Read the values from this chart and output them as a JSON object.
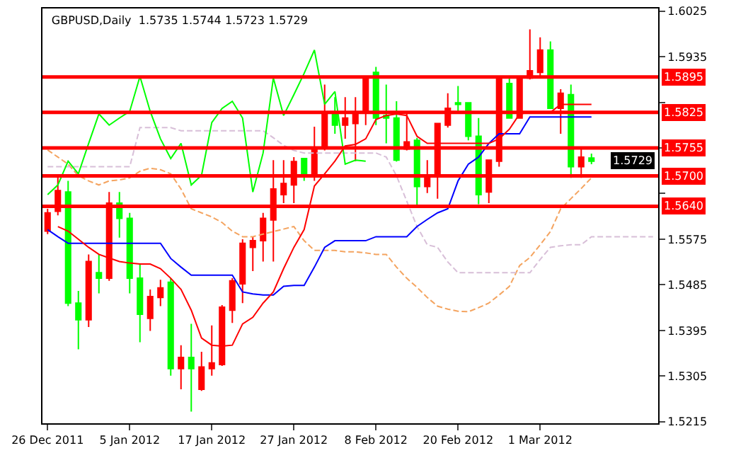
{
  "chart_data": {
    "type": "candlestick",
    "title": "GBPUSD,Daily  1.5735 1.5744 1.5723 1.5729",
    "categories": [
      "26 Dec 2011",
      null,
      null,
      null,
      null,
      null,
      null,
      null,
      "5 Jan 2012",
      null,
      null,
      null,
      null,
      null,
      null,
      null,
      "17 Jan 2012",
      null,
      null,
      null,
      null,
      null,
      null,
      null,
      "27 Jan 2012",
      null,
      null,
      null,
      null,
      null,
      null,
      null,
      "8 Feb 2012",
      null,
      null,
      null,
      null,
      null,
      null,
      null,
      "20 Feb 2012",
      null,
      null,
      null,
      null,
      null,
      null,
      null,
      "1 Mar 2012",
      null,
      null,
      null,
      null,
      null,
      null,
      null,
      null,
      null,
      null,
      null
    ],
    "ohlc": [
      [
        1.5591,
        1.5635,
        1.5585,
        1.5627
      ],
      [
        1.563,
        1.5701,
        1.5622,
        1.5671
      ],
      [
        1.5668,
        1.569,
        1.5443,
        1.5449
      ],
      [
        1.5449,
        1.5473,
        1.5358,
        1.5416
      ],
      [
        1.5416,
        1.5545,
        1.5402,
        1.5531
      ],
      [
        1.5509,
        1.5545,
        1.5468,
        1.5498
      ],
      [
        1.5498,
        1.5668,
        1.5493,
        1.5646
      ],
      [
        1.5646,
        1.5668,
        1.5578,
        1.5616
      ],
      [
        1.5616,
        1.5627,
        1.5468,
        1.5498
      ],
      [
        1.5498,
        1.5526,
        1.5372,
        1.5427
      ],
      [
        1.5419,
        1.5476,
        1.5394,
        1.5462
      ],
      [
        1.546,
        1.5495,
        1.5443,
        1.5479
      ],
      [
        1.549,
        1.5498,
        1.5306,
        1.532
      ],
      [
        1.532,
        1.5366,
        1.5279,
        1.5342
      ],
      [
        1.5342,
        1.5408,
        1.5235,
        1.532
      ],
      [
        1.5279,
        1.5353,
        1.5276,
        1.5323
      ],
      [
        1.532,
        1.5405,
        1.5306,
        1.5331
      ],
      [
        1.5328,
        1.5445,
        1.5325,
        1.5441
      ],
      [
        1.5435,
        1.5498,
        1.541,
        1.5493
      ],
      [
        1.5487,
        1.5575,
        1.5449,
        1.5567
      ],
      [
        1.5559,
        1.558,
        1.5512,
        1.5572
      ],
      [
        1.5572,
        1.5627,
        1.5531,
        1.5616
      ],
      [
        1.5613,
        1.5731,
        1.5531,
        1.5674
      ],
      [
        1.5663,
        1.5731,
        1.5646,
        1.5685
      ],
      [
        1.5682,
        1.5737,
        1.5646,
        1.5728
      ],
      [
        1.5734,
        1.5734,
        1.569,
        1.5698
      ],
      [
        1.5698,
        1.5797,
        1.569,
        1.5756
      ],
      [
        1.5756,
        1.588,
        1.575,
        1.5825
      ],
      [
        1.5825,
        1.5855,
        1.5783,
        1.58
      ],
      [
        1.58,
        1.5855,
        1.5773,
        1.5814
      ],
      [
        1.5803,
        1.5855,
        1.5729,
        1.5825
      ],
      [
        1.5825,
        1.5896,
        1.58,
        1.5896
      ],
      [
        1.5904,
        1.5915,
        1.58,
        1.5814
      ],
      [
        1.5819,
        1.588,
        1.5764,
        1.5814
      ],
      [
        1.5814,
        1.5847,
        1.5728,
        1.5731
      ],
      [
        1.5753,
        1.5822,
        1.575,
        1.5767
      ],
      [
        1.577,
        1.5775,
        1.5641,
        1.5679
      ],
      [
        1.5679,
        1.5731,
        1.5666,
        1.5696
      ],
      [
        1.5698,
        1.5803,
        1.5655,
        1.5803
      ],
      [
        1.58,
        1.5863,
        1.5795,
        1.5833
      ],
      [
        1.5844,
        1.5877,
        1.5825,
        1.5841
      ],
      [
        1.5844,
        1.5844,
        1.577,
        1.5778
      ],
      [
        1.5778,
        1.5814,
        1.5644,
        1.5663
      ],
      [
        1.5668,
        1.5731,
        1.5646,
        1.5731
      ],
      [
        1.5729,
        1.5891,
        1.5718,
        1.5891
      ],
      [
        1.5882,
        1.5896,
        1.5814,
        1.5814
      ],
      [
        1.5814,
        1.5893,
        1.5814,
        1.5893
      ],
      [
        1.5893,
        1.5989,
        1.589,
        1.5907
      ],
      [
        1.5904,
        1.5973,
        1.5893,
        1.5948
      ],
      [
        1.5948,
        1.5965,
        1.5833,
        1.5833
      ],
      [
        1.5833,
        1.5871,
        1.5783,
        1.5863
      ],
      [
        1.586,
        1.588,
        1.5696,
        1.5718
      ],
      [
        1.5718,
        1.5753,
        1.5696,
        1.5737
      ],
      [
        1.5735,
        1.5744,
        1.5723,
        1.5729
      ],
      null,
      null,
      null,
      null,
      null,
      null
    ],
    "colors": [
      "#ff0000",
      "#ff0000",
      "#00ff00",
      "#00ff00",
      "#ff0000",
      "#00ff00",
      "#ff0000",
      "#00ff00",
      "#00ff00",
      "#00ff00",
      "#ff0000",
      "#ff0000",
      "#00ff00",
      "#ff0000",
      "#00ff00",
      "#ff0000",
      "#ff0000",
      "#ff0000",
      "#ff0000",
      "#ff0000",
      "#ff0000",
      "#ff0000",
      "#ff0000",
      "#ff0000",
      "#ff0000",
      "#00ff00",
      "#ff0000",
      "#ff0000",
      "#00ff00",
      "#ff0000",
      "#ff0000",
      "#ff0000",
      "#00ff00",
      "#00ff00",
      "#00ff00",
      "#ff0000",
      "#00ff00",
      "#ff0000",
      "#ff0000",
      "#ff0000",
      "#00ff00",
      "#00ff00",
      "#00ff00",
      "#ff0000",
      "#ff0000",
      "#00ff00",
      "#ff0000",
      "#ff0000",
      "#ff0000",
      "#00ff00",
      "#ff0000",
      "#00ff00",
      "#ff0000",
      "#00ff00",
      null,
      null,
      null,
      null,
      null,
      null
    ],
    "series": [
      {
        "type": "line",
        "color": "#f4a460",
        "line_style": "dashed",
        "values": [
          1.5751,
          1.5737,
          1.5723,
          1.57,
          1.569,
          1.5682,
          1.569,
          1.5692,
          1.5696,
          1.5709,
          1.5715,
          1.5712,
          1.5704,
          1.5674,
          1.5635,
          1.5627,
          1.5619,
          1.5608,
          1.5591,
          1.558,
          1.558,
          1.5585,
          1.559,
          1.5595,
          1.56,
          1.5572,
          1.5553,
          1.5553,
          1.5553,
          1.555,
          1.555,
          1.5548,
          1.5545,
          1.5545,
          1.552,
          1.5498,
          1.548,
          1.546,
          1.5443,
          1.5437,
          1.5433,
          1.5432,
          1.544,
          1.5449,
          1.5465,
          1.5482,
          1.5523,
          1.5539,
          1.5564,
          1.559,
          1.5635,
          1.5655,
          1.5675,
          1.5696,
          null,
          null,
          null,
          null,
          null,
          null
        ]
      },
      {
        "type": "line",
        "color": "#d8bfd8",
        "line_style": "dashed",
        "values": [
          1.5718,
          1.5718,
          1.5718,
          1.5718,
          1.5718,
          1.5718,
          1.5718,
          1.5718,
          1.5718,
          1.5795,
          1.5795,
          1.5795,
          1.5795,
          1.5789,
          1.5789,
          1.5789,
          1.5789,
          1.5789,
          1.5789,
          1.5789,
          1.5789,
          1.5789,
          1.5775,
          1.576,
          1.575,
          1.5745,
          1.5745,
          1.5745,
          1.5745,
          1.5745,
          1.5745,
          1.5745,
          1.5745,
          1.5737,
          1.57,
          1.565,
          1.56,
          1.5564,
          1.5559,
          1.553,
          1.5509,
          1.5509,
          1.5509,
          1.5509,
          1.5509,
          1.5509,
          1.5509,
          1.5509,
          1.5535,
          1.5559,
          1.5562,
          1.5564,
          1.5564,
          1.558,
          1.558,
          1.558,
          1.558,
          1.558,
          1.558,
          1.558
        ]
      },
      {
        "type": "line",
        "color": "#00ff00",
        "line_style": "solid",
        "values": [
          1.5663,
          1.5682,
          1.5729,
          1.5704,
          1.5764,
          1.5822,
          1.58,
          1.5814,
          1.5827,
          1.5896,
          1.5827,
          1.5773,
          1.5734,
          1.5764,
          1.5682,
          1.5701,
          1.5805,
          1.5833,
          1.5847,
          1.5814,
          1.5668,
          1.5745,
          1.5893,
          1.5819,
          1.586,
          1.5902,
          1.5948,
          1.5841,
          1.5866,
          1.5723,
          1.5731,
          1.5729,
          null,
          null,
          null,
          null,
          null,
          null,
          null,
          null,
          null,
          null,
          null,
          null,
          null,
          null,
          null,
          null,
          null,
          null,
          null,
          null,
          null,
          null,
          null,
          null,
          null,
          null,
          null,
          null
        ]
      },
      {
        "type": "line",
        "color": "#0000ff",
        "line_style": "solid",
        "values": [
          1.5594,
          1.558,
          1.5567,
          1.5567,
          1.5567,
          1.5567,
          1.5567,
          1.5567,
          1.5567,
          1.5567,
          1.5567,
          1.5567,
          1.5537,
          1.552,
          1.5504,
          1.5504,
          1.5504,
          1.5504,
          1.5504,
          1.5471,
          1.5467,
          1.5465,
          1.5465,
          1.5482,
          1.5484,
          1.5484,
          1.552,
          1.5559,
          1.5572,
          1.5572,
          1.5572,
          1.5572,
          1.558,
          1.558,
          1.558,
          1.558,
          1.56,
          1.5614,
          1.5627,
          1.5635,
          1.569,
          1.5723,
          1.5737,
          1.5764,
          1.5783,
          1.5783,
          1.5783,
          1.5816,
          1.5816,
          1.5816,
          1.5816,
          1.5816,
          1.5816,
          1.5816,
          null,
          null,
          null,
          null,
          null,
          null
        ]
      },
      {
        "type": "line",
        "color": "#ff0000",
        "line_style": "solid",
        "values": [
          null,
          1.56,
          1.5591,
          1.5575,
          1.5559,
          1.5545,
          1.5538,
          1.5531,
          1.5528,
          1.5526,
          1.5526,
          1.5517,
          1.5498,
          1.5476,
          1.5435,
          1.538,
          1.5366,
          1.5364,
          1.5366,
          1.5408,
          1.5421,
          1.5449,
          1.5471,
          1.5517,
          1.5559,
          1.5594,
          1.568,
          1.5704,
          1.5729,
          1.5759,
          1.5762,
          1.5773,
          1.5811,
          1.5819,
          1.5822,
          1.5819,
          1.5778,
          1.5764,
          1.5764,
          1.5764,
          1.5764,
          1.5764,
          1.5764,
          1.5764,
          1.5773,
          1.5792,
          1.5822,
          1.5825,
          1.5825,
          1.5825,
          1.5841,
          1.5841,
          1.5841,
          1.5841,
          null,
          null,
          null,
          null,
          null,
          null
        ]
      }
    ],
    "ref_lines": [
      {
        "axis": "y",
        "value": 1.5895,
        "label": "1.5895",
        "color": "#ff0000"
      },
      {
        "axis": "y",
        "value": 1.5825,
        "label": "1.5825",
        "color": "#ff0000"
      },
      {
        "axis": "y",
        "value": 1.5755,
        "label": "1.5755",
        "color": "#ff0000"
      },
      {
        "axis": "y",
        "value": 1.57,
        "label": "1.5700",
        "color": "#ff0000"
      },
      {
        "axis": "y",
        "value": 1.564,
        "label": "1.5640",
        "color": "#ff0000"
      }
    ],
    "annotations": [
      {
        "text": "1.5729",
        "y": 1.5729
      }
    ],
    "ylim": [
      1.5212,
      1.603
    ],
    "yticks": [
      1.5215,
      1.5305,
      1.5395,
      1.5485,
      1.5575,
      {
        "value": 1.5665,
        "label": null
      },
      {
        "value": 1.5755,
        "label": null
      },
      {
        "value": 1.5845,
        "label": null
      },
      1.5935,
      1.6025
    ]
  }
}
